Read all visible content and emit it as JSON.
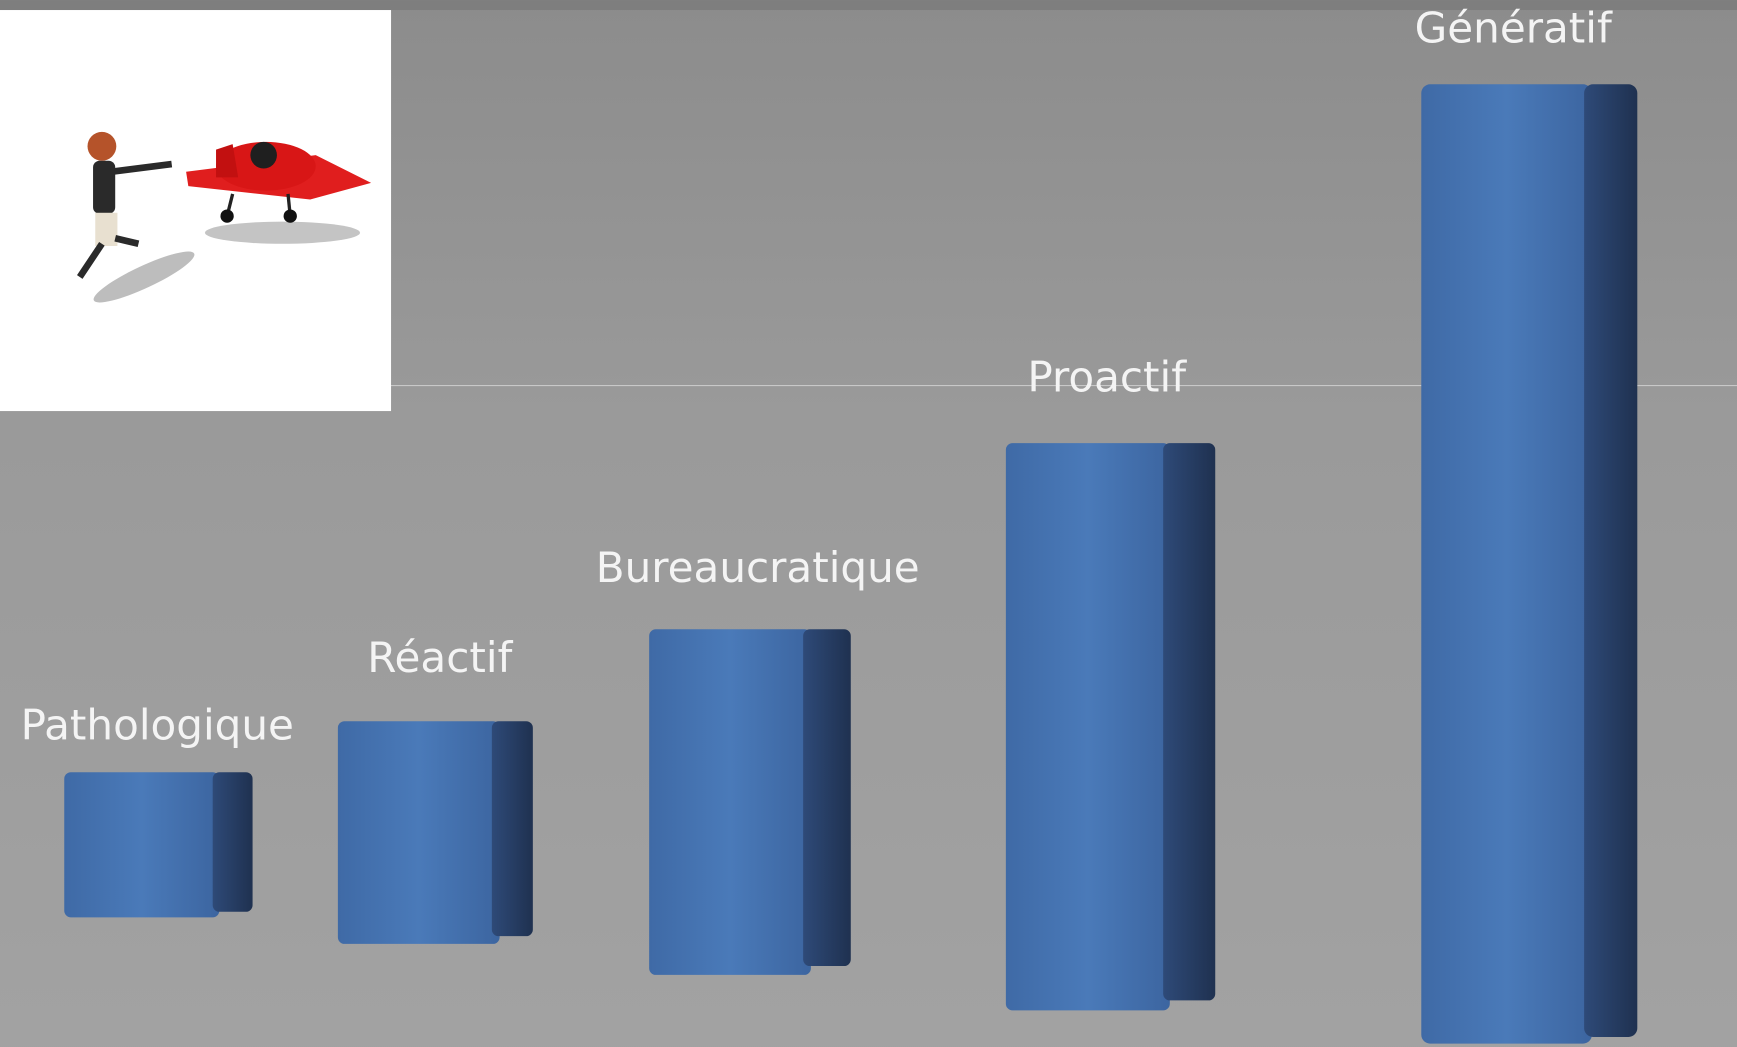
{
  "labels": [
    "Pathologique",
    "Réactif",
    "Bureaucratique",
    "Proactif",
    "Génératif"
  ]
}
